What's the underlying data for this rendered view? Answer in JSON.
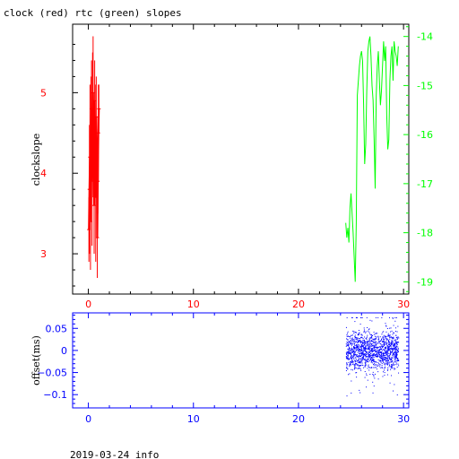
{
  "title": "clock (red) rtc (green) slopes",
  "footer": "2019-03-24 info",
  "colors": {
    "red": "#ff0000",
    "green": "#00ff00",
    "blue": "#0000ff",
    "axis": "#000000"
  },
  "chart_data": [
    {
      "type": "line",
      "title": "clock (red) rtc (green) slopes",
      "xlabel": "",
      "ylabel": "clockslope",
      "xlim": [
        -1.5,
        30.5
      ],
      "ylim": [
        2.5,
        5.85
      ],
      "ylim_right": [
        -19.25,
        -13.75
      ],
      "x_ticks": [
        0,
        10,
        20,
        30
      ],
      "y_ticks_left": [
        3,
        4,
        5
      ],
      "y_ticks_right": [
        -14,
        -15,
        -16,
        -17,
        -18,
        -19
      ],
      "grid": false,
      "series": [
        {
          "name": "clock",
          "axis": "left",
          "color": "#ff0000",
          "style": "errorbar",
          "x": [
            0.05,
            0.1,
            0.15,
            0.2,
            0.25,
            0.3,
            0.35,
            0.4,
            0.45,
            0.5,
            0.55,
            0.6,
            0.65,
            0.7,
            0.75,
            0.8,
            0.85,
            0.9,
            0.95,
            1.0
          ],
          "y": [
            3.3,
            3.8,
            4.2,
            3.4,
            4.5,
            4.8,
            3.9,
            4.6,
            5.0,
            4.3,
            3.6,
            4.9,
            4.4,
            3.7,
            4.7,
            4.1,
            3.2,
            3.9,
            4.5,
            4.8
          ],
          "err": [
            0.4,
            0.8,
            0.9,
            0.6,
            0.7,
            0.6,
            0.8,
            0.9,
            0.7,
            0.5,
            0.6,
            0.5,
            0.7,
            0.8,
            0.5,
            0.6,
            0.5,
            0.4,
            0.6,
            0.3
          ]
        },
        {
          "name": "rtc",
          "axis": "right",
          "color": "#00ff00",
          "x": [
            24.5,
            24.6,
            24.7,
            24.8,
            24.9,
            25.0,
            25.1,
            25.2,
            25.3,
            25.4,
            25.5,
            25.6,
            25.7,
            25.8,
            25.9,
            26.0,
            26.1,
            26.2,
            26.3,
            26.4,
            26.5,
            26.6,
            26.7,
            26.8,
            26.9,
            27.0,
            27.1,
            27.2,
            27.3,
            27.4,
            27.5,
            27.6,
            27.7,
            27.8,
            27.9,
            28.0,
            28.1,
            28.2,
            28.3,
            28.4,
            28.5,
            28.6,
            28.7,
            28.8,
            28.9,
            29.0,
            29.1,
            29.2,
            29.3,
            29.4,
            29.5
          ],
          "y": [
            -17.8,
            -18.1,
            -17.9,
            -18.2,
            -17.5,
            -17.2,
            -17.6,
            -18.0,
            -18.5,
            -19.0,
            -17.8,
            -15.2,
            -14.9,
            -14.6,
            -14.4,
            -14.3,
            -14.5,
            -15.4,
            -16.6,
            -16.2,
            -15.1,
            -14.3,
            -14.1,
            -14.0,
            -14.4,
            -15.0,
            -15.3,
            -16.1,
            -17.1,
            -15.2,
            -14.6,
            -14.3,
            -14.9,
            -15.4,
            -15.1,
            -14.6,
            -14.1,
            -14.5,
            -14.2,
            -15.6,
            -16.3,
            -16.1,
            -14.9,
            -14.4,
            -14.2,
            -14.9,
            -14.1,
            -14.3,
            -14.4,
            -14.6,
            -14.2
          ]
        }
      ]
    },
    {
      "type": "scatter",
      "title": "",
      "xlabel": "",
      "ylabel": "offset(ms)",
      "xlim": [
        -1.5,
        30.5
      ],
      "ylim": [
        -0.13,
        0.085
      ],
      "x_ticks": [
        0,
        10,
        20,
        30
      ],
      "y_ticks": [
        0.05,
        0,
        -0.05,
        -0.1
      ],
      "y_tick_labels": [
        "0.05",
        "0",
        "−0.05",
        "−0.1"
      ],
      "grid": false,
      "series": [
        {
          "name": "offset",
          "color": "#0000ff",
          "x_range": [
            24.5,
            29.5
          ],
          "center": 0.0,
          "typical_spread": 0.035,
          "max": 0.075,
          "min": -0.115
        }
      ]
    }
  ]
}
